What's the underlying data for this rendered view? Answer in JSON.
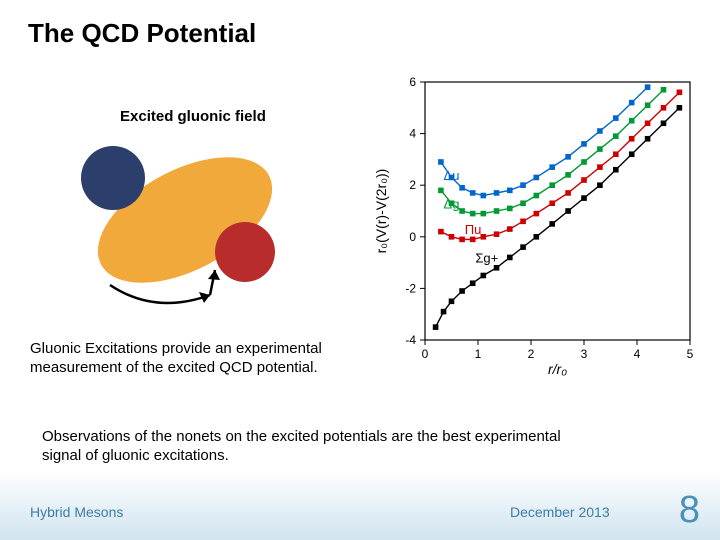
{
  "title": "The QCD Potential",
  "excited_label": "Excited gluonic field",
  "para1": "Gluonic Excitations provide an experimental measurement of the excited QCD potential.",
  "para2": "Observations of the nonets on the excited potentials are the best experimental signal of gluonic excitations.",
  "footer": {
    "left": "Hybrid Mesons",
    "center": "December 2013",
    "page": "8"
  },
  "diagram": {
    "ellipse_fill": "#f2a93b",
    "quark1_fill": "#2c3e6b",
    "quark2_fill": "#b82c2c",
    "arrow_color": "#000000"
  },
  "chart": {
    "xlim": [
      0,
      5
    ],
    "ylim": [
      -4,
      6
    ],
    "xticks": [
      0,
      1,
      2,
      3,
      4,
      5
    ],
    "yticks": [
      -4,
      -2,
      0,
      2,
      4,
      6
    ],
    "xlabel": "r/r₀",
    "ylabel": "r₀(V(r)-V(2r₀))",
    "axis_color": "#000000",
    "tick_fontsize": 12,
    "label_fontsize": 14,
    "series": [
      {
        "name": "Sigma_g_plus",
        "label": "Σg+",
        "label_color": "#000000",
        "label_x": 0.95,
        "label_y": -1.0,
        "marker_color": "#000000",
        "line_color": "#000000",
        "data": [
          {
            "x": 0.2,
            "y": -3.5
          },
          {
            "x": 0.35,
            "y": -2.9
          },
          {
            "x": 0.5,
            "y": -2.5
          },
          {
            "x": 0.7,
            "y": -2.1
          },
          {
            "x": 0.9,
            "y": -1.8
          },
          {
            "x": 1.1,
            "y": -1.5
          },
          {
            "x": 1.35,
            "y": -1.2
          },
          {
            "x": 1.6,
            "y": -0.8
          },
          {
            "x": 1.85,
            "y": -0.4
          },
          {
            "x": 2.1,
            "y": 0.0
          },
          {
            "x": 2.4,
            "y": 0.5
          },
          {
            "x": 2.7,
            "y": 1.0
          },
          {
            "x": 3.0,
            "y": 1.5
          },
          {
            "x": 3.3,
            "y": 2.0
          },
          {
            "x": 3.6,
            "y": 2.6
          },
          {
            "x": 3.9,
            "y": 3.2
          },
          {
            "x": 4.2,
            "y": 3.8
          },
          {
            "x": 4.5,
            "y": 4.4
          },
          {
            "x": 4.8,
            "y": 5.0
          }
        ]
      },
      {
        "name": "Pi_u",
        "label": "Πu",
        "label_color": "#cc0000",
        "label_x": 0.75,
        "label_y": 0.1,
        "marker_color": "#cc0000",
        "line_color": "#cc0000",
        "data": [
          {
            "x": 0.3,
            "y": 0.2
          },
          {
            "x": 0.5,
            "y": 0.0
          },
          {
            "x": 0.7,
            "y": -0.1
          },
          {
            "x": 0.9,
            "y": -0.1
          },
          {
            "x": 1.1,
            "y": 0.0
          },
          {
            "x": 1.35,
            "y": 0.1
          },
          {
            "x": 1.6,
            "y": 0.3
          },
          {
            "x": 1.85,
            "y": 0.6
          },
          {
            "x": 2.1,
            "y": 0.9
          },
          {
            "x": 2.4,
            "y": 1.3
          },
          {
            "x": 2.7,
            "y": 1.7
          },
          {
            "x": 3.0,
            "y": 2.2
          },
          {
            "x": 3.3,
            "y": 2.7
          },
          {
            "x": 3.6,
            "y": 3.2
          },
          {
            "x": 3.9,
            "y": 3.8
          },
          {
            "x": 4.2,
            "y": 4.4
          },
          {
            "x": 4.5,
            "y": 5.0
          },
          {
            "x": 4.8,
            "y": 5.6
          }
        ]
      },
      {
        "name": "Delta_g",
        "label": "Δg",
        "label_color": "#009933",
        "label_x": 0.35,
        "label_y": 1.1,
        "marker_color": "#009933",
        "line_color": "#009933",
        "data": [
          {
            "x": 0.3,
            "y": 1.8
          },
          {
            "x": 0.5,
            "y": 1.3
          },
          {
            "x": 0.7,
            "y": 1.0
          },
          {
            "x": 0.9,
            "y": 0.9
          },
          {
            "x": 1.1,
            "y": 0.9
          },
          {
            "x": 1.35,
            "y": 1.0
          },
          {
            "x": 1.6,
            "y": 1.1
          },
          {
            "x": 1.85,
            "y": 1.3
          },
          {
            "x": 2.1,
            "y": 1.6
          },
          {
            "x": 2.4,
            "y": 2.0
          },
          {
            "x": 2.7,
            "y": 2.4
          },
          {
            "x": 3.0,
            "y": 2.9
          },
          {
            "x": 3.3,
            "y": 3.4
          },
          {
            "x": 3.6,
            "y": 3.9
          },
          {
            "x": 3.9,
            "y": 4.5
          },
          {
            "x": 4.2,
            "y": 5.1
          },
          {
            "x": 4.5,
            "y": 5.7
          }
        ]
      },
      {
        "name": "Delta_u",
        "label": "Δu",
        "label_color": "#0066cc",
        "label_x": 0.35,
        "label_y": 2.2,
        "marker_color": "#0066cc",
        "line_color": "#0066cc",
        "data": [
          {
            "x": 0.3,
            "y": 2.9
          },
          {
            "x": 0.5,
            "y": 2.3
          },
          {
            "x": 0.7,
            "y": 1.9
          },
          {
            "x": 0.9,
            "y": 1.7
          },
          {
            "x": 1.1,
            "y": 1.6
          },
          {
            "x": 1.35,
            "y": 1.7
          },
          {
            "x": 1.6,
            "y": 1.8
          },
          {
            "x": 1.85,
            "y": 2.0
          },
          {
            "x": 2.1,
            "y": 2.3
          },
          {
            "x": 2.4,
            "y": 2.7
          },
          {
            "x": 2.7,
            "y": 3.1
          },
          {
            "x": 3.0,
            "y": 3.6
          },
          {
            "x": 3.3,
            "y": 4.1
          },
          {
            "x": 3.6,
            "y": 4.6
          },
          {
            "x": 3.9,
            "y": 5.2
          },
          {
            "x": 4.2,
            "y": 5.8
          }
        ]
      }
    ]
  }
}
